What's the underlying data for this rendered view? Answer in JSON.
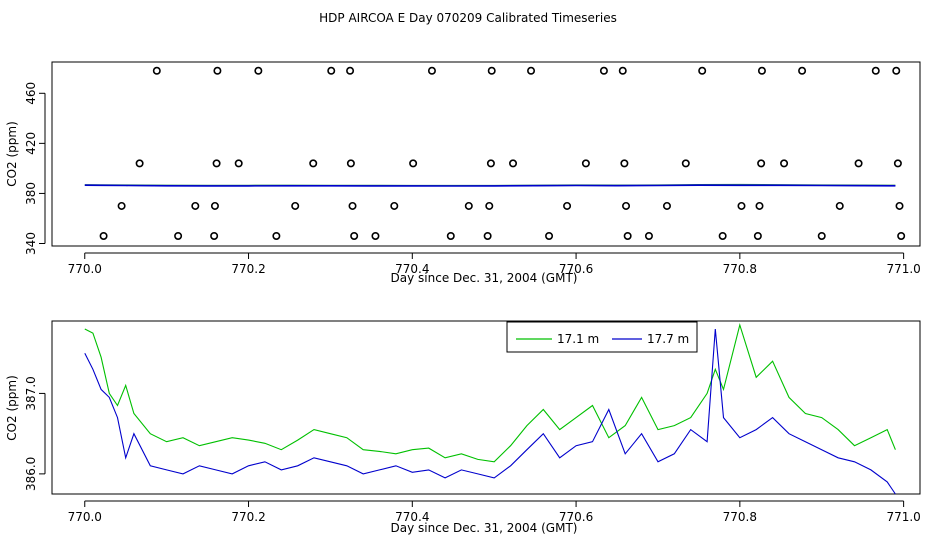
{
  "figure_title": "HDP AIRCOA E  Day 070209  Calibrated Timeseries",
  "chart_data": [
    {
      "type": "scatter",
      "title": "",
      "xlabel": "Day since Dec. 31, 2004 (GMT)",
      "ylabel": "CO2 (ppm)",
      "xlim": [
        769.96,
        771.02
      ],
      "ylim": [
        338,
        485
      ],
      "x_ticks": [
        770.0,
        770.2,
        770.4,
        770.6,
        770.8,
        771.0
      ],
      "x_tick_labels": [
        "770.0",
        "770.2",
        "770.4",
        "770.6",
        "770.8",
        "771.0"
      ],
      "y_ticks": [
        340,
        380,
        420,
        460
      ],
      "y_tick_labels": [
        "340",
        "380",
        "420",
        "460"
      ],
      "series": [
        {
          "color": "#000000",
          "style": "open-circle",
          "x": [
            770.088,
            770.162,
            770.212,
            770.301,
            770.324,
            770.424,
            770.497,
            770.545,
            770.634,
            770.657,
            770.754,
            770.827,
            770.876,
            770.966,
            770.991,
            770.067,
            770.161,
            770.188,
            770.279,
            770.325,
            770.401,
            770.496,
            770.523,
            770.612,
            770.659,
            770.734,
            770.826,
            770.854,
            770.945,
            770.993,
            770.045,
            770.135,
            770.159,
            770.257,
            770.327,
            770.378,
            770.469,
            770.494,
            770.589,
            770.661,
            770.711,
            770.802,
            770.824,
            770.922,
            770.995,
            770.023,
            770.114,
            770.158,
            770.234,
            770.329,
            770.355,
            770.447,
            770.492,
            770.567,
            770.663,
            770.689,
            770.779,
            770.822,
            770.9,
            770.997
          ],
          "y": [
            478,
            478,
            478,
            478,
            478,
            478,
            478,
            478,
            478,
            478,
            478,
            478,
            478,
            478,
            478,
            404,
            404,
            404,
            404,
            404,
            404,
            404,
            404,
            404,
            404,
            404,
            404,
            404,
            404,
            404,
            370,
            370,
            370,
            370,
            370,
            370,
            370,
            370,
            370,
            370,
            370,
            370,
            370,
            370,
            370,
            346,
            346,
            346,
            346,
            346,
            346,
            346,
            346,
            346,
            346,
            346,
            346,
            346,
            346,
            346
          ]
        },
        {
          "color": "#2e8b57",
          "style": "line",
          "x": [
            770.0,
            770.02,
            770.05,
            770.1,
            770.15,
            770.2,
            770.25,
            770.3,
            770.35,
            770.4,
            770.45,
            770.5,
            770.55,
            770.6,
            770.65,
            770.7,
            770.75,
            770.8,
            770.85,
            770.9,
            770.95,
            770.99
          ],
          "y": [
            386.8,
            386.7,
            386.6,
            386.4,
            386.3,
            386.3,
            386.4,
            386.3,
            386.3,
            386.2,
            386.2,
            386.2,
            386.4,
            386.6,
            386.5,
            386.6,
            386.9,
            387.0,
            386.8,
            386.6,
            386.5,
            386.4
          ]
        },
        {
          "color": "#0000cc",
          "style": "line",
          "x": [
            770.0,
            770.02,
            770.05,
            770.1,
            770.15,
            770.2,
            770.25,
            770.3,
            770.35,
            770.4,
            770.45,
            770.5,
            770.55,
            770.6,
            770.65,
            770.7,
            770.75,
            770.8,
            770.85,
            770.9,
            770.95,
            770.99
          ],
          "y": [
            386.6,
            386.5,
            386.3,
            386.1,
            386.0,
            386.0,
            386.1,
            386.1,
            386.0,
            386.0,
            385.9,
            386.0,
            386.2,
            386.3,
            386.2,
            386.3,
            386.6,
            386.5,
            386.5,
            386.3,
            386.2,
            386.1
          ]
        }
      ]
    },
    {
      "type": "line",
      "title": "",
      "xlabel": "Day since Dec. 31, 2004 (GMT)",
      "ylabel": "CO2 (ppm)",
      "xlim": [
        769.96,
        771.02
      ],
      "ylim": [
        385.75,
        387.9
      ],
      "x_ticks": [
        770.0,
        770.2,
        770.4,
        770.6,
        770.8,
        771.0
      ],
      "x_tick_labels": [
        "770.0",
        "770.2",
        "770.4",
        "770.6",
        "770.8",
        "771.0"
      ],
      "y_ticks": [
        386.0,
        387.0
      ],
      "y_tick_labels": [
        "386.0",
        "387.0"
      ],
      "legend_position": "top-center",
      "series": [
        {
          "name": "17.1 m",
          "color": "#00c000",
          "x": [
            770.0,
            770.01,
            770.02,
            770.03,
            770.04,
            770.05,
            770.06,
            770.08,
            770.1,
            770.12,
            770.14,
            770.16,
            770.18,
            770.2,
            770.22,
            770.24,
            770.26,
            770.28,
            770.3,
            770.32,
            770.34,
            770.36,
            770.38,
            770.4,
            770.42,
            770.44,
            770.46,
            770.48,
            770.5,
            770.52,
            770.54,
            770.56,
            770.58,
            770.6,
            770.62,
            770.64,
            770.66,
            770.68,
            770.7,
            770.72,
            770.74,
            770.76,
            770.77,
            770.78,
            770.8,
            770.82,
            770.84,
            770.86,
            770.88,
            770.9,
            770.92,
            770.94,
            770.96,
            770.98,
            770.99
          ],
          "y": [
            387.8,
            387.75,
            387.45,
            387.0,
            386.85,
            387.1,
            386.75,
            386.5,
            386.4,
            386.45,
            386.35,
            386.4,
            386.45,
            386.42,
            386.38,
            386.3,
            386.42,
            386.55,
            386.5,
            386.45,
            386.3,
            386.28,
            386.25,
            386.3,
            386.32,
            386.2,
            386.25,
            386.18,
            386.15,
            386.35,
            386.6,
            386.8,
            386.55,
            386.7,
            386.85,
            386.45,
            386.6,
            386.95,
            386.55,
            386.6,
            386.7,
            387.0,
            387.3,
            387.05,
            387.85,
            387.2,
            387.4,
            386.95,
            386.75,
            386.7,
            386.55,
            386.35,
            386.45,
            386.55,
            386.3
          ]
        },
        {
          "name": "17.7 m",
          "color": "#0000cc",
          "x": [
            770.0,
            770.01,
            770.02,
            770.03,
            770.04,
            770.05,
            770.06,
            770.08,
            770.1,
            770.12,
            770.14,
            770.16,
            770.18,
            770.2,
            770.22,
            770.24,
            770.26,
            770.28,
            770.3,
            770.32,
            770.34,
            770.36,
            770.38,
            770.4,
            770.42,
            770.44,
            770.46,
            770.48,
            770.5,
            770.52,
            770.54,
            770.56,
            770.58,
            770.6,
            770.62,
            770.64,
            770.66,
            770.68,
            770.7,
            770.72,
            770.74,
            770.76,
            770.77,
            770.78,
            770.8,
            770.82,
            770.84,
            770.86,
            770.88,
            770.9,
            770.92,
            770.94,
            770.96,
            770.98,
            770.99
          ],
          "y": [
            387.5,
            387.3,
            387.05,
            386.95,
            386.7,
            386.2,
            386.5,
            386.1,
            386.05,
            386.0,
            386.1,
            386.05,
            386.0,
            386.1,
            386.15,
            386.05,
            386.1,
            386.2,
            386.15,
            386.1,
            386.0,
            386.05,
            386.1,
            386.02,
            386.05,
            385.95,
            386.05,
            386.0,
            385.95,
            386.1,
            386.3,
            386.5,
            386.2,
            386.35,
            386.4,
            386.8,
            386.25,
            386.5,
            386.15,
            386.25,
            386.55,
            386.4,
            387.8,
            386.7,
            386.45,
            386.55,
            386.7,
            386.5,
            386.4,
            386.3,
            386.2,
            386.15,
            386.05,
            385.9,
            385.75
          ]
        }
      ]
    }
  ]
}
